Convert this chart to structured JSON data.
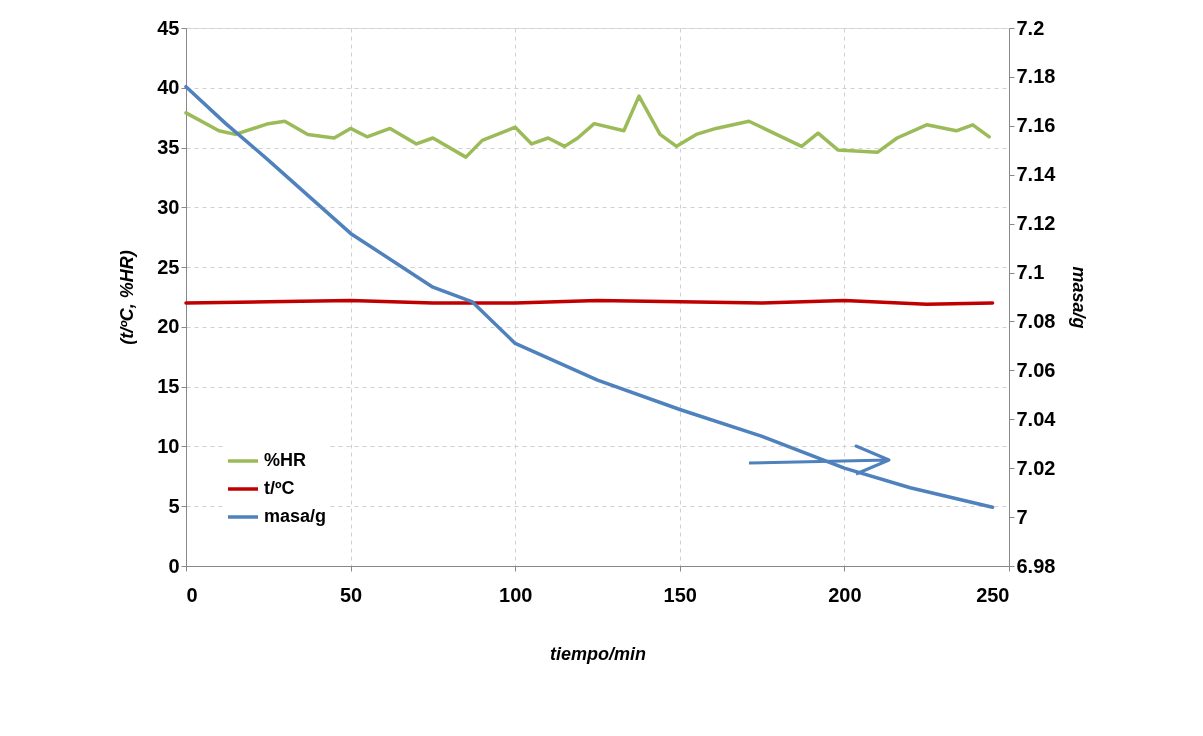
{
  "chart_data": {
    "type": "line",
    "xlabel": "tiempo/min",
    "ylabel": "(t/ºC, %HR)",
    "y2label": "masa/g",
    "xlim": [
      0,
      250
    ],
    "xticks": [
      0,
      50,
      100,
      150,
      200,
      250
    ],
    "ylim": [
      0,
      45
    ],
    "yticks": [
      0,
      5,
      10,
      15,
      20,
      25,
      30,
      35,
      40,
      45
    ],
    "y2lim": [
      6.98,
      7.2
    ],
    "y2ticks": [
      6.98,
      7,
      7.02,
      7.04,
      7.06,
      7.08,
      7.1,
      7.12,
      7.14,
      7.16,
      7.18,
      7.2
    ],
    "grid": true,
    "legend": "bottom left",
    "series": [
      {
        "name": "%HR",
        "color": "#9bbb59",
        "x": [
          0,
          10,
          15,
          25,
          30,
          37,
          45,
          50,
          55,
          62,
          70,
          75,
          85,
          90,
          100,
          105,
          110,
          115,
          119,
          124,
          133,
          137.6,
          144,
          149,
          155,
          161,
          171,
          187,
          192,
          198,
          210,
          216,
          225,
          234,
          239,
          244
        ],
        "values": [
          37.9,
          36.4,
          36.1,
          37.0,
          37.2,
          36.1,
          35.8,
          36.6,
          35.9,
          36.6,
          35.3,
          35.8,
          34.2,
          35.6,
          36.7,
          35.3,
          35.8,
          35.1,
          35.8,
          37.0,
          36.4,
          39.3,
          36.1,
          35.1,
          36.1,
          36.6,
          37.2,
          35.1,
          36.2,
          34.8,
          34.6,
          35.8,
          36.9,
          36.4,
          36.9,
          35.9
        ]
      },
      {
        "name": "t/ºC",
        "color": "#c00000",
        "x": [
          0,
          25,
          50,
          75,
          100,
          125,
          150,
          175,
          200,
          225,
          245
        ],
        "values": [
          22.0,
          22.1,
          22.2,
          22.0,
          22.0,
          22.2,
          22.1,
          22.0,
          22.2,
          21.9,
          22.0
        ]
      },
      {
        "name": "masa/g",
        "color": "#4f81bd",
        "axis": "y2",
        "x": [
          0,
          12,
          25,
          50,
          75,
          87,
          100,
          125,
          150,
          175,
          200,
          220,
          245
        ],
        "values": [
          7.176,
          7.161,
          7.146,
          7.116,
          7.094,
          7.088,
          7.071,
          7.056,
          7.044,
          7.033,
          7.02,
          7.012,
          7.004
        ]
      }
    ]
  }
}
